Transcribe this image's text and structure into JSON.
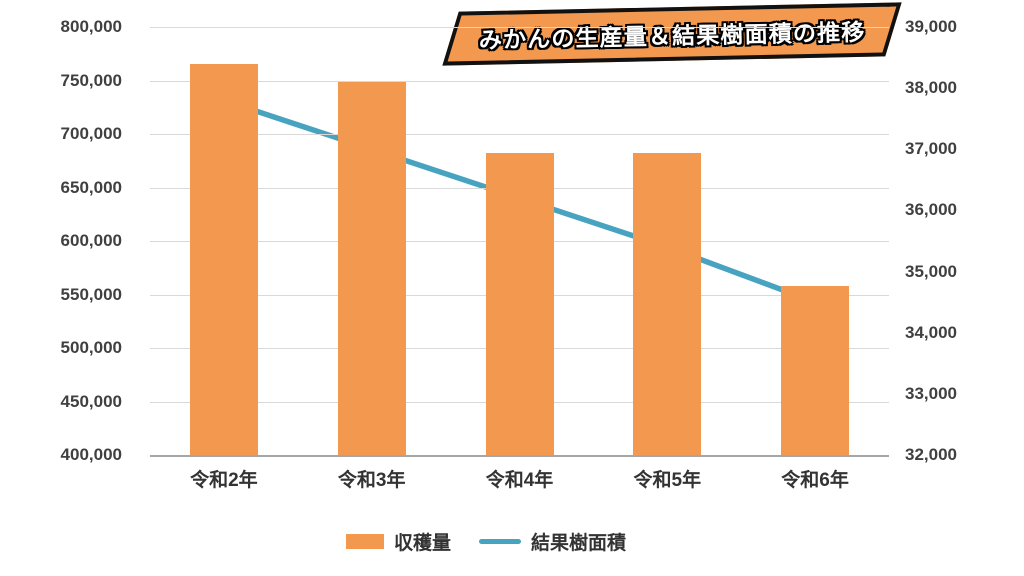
{
  "title": "みかんの生産量＆結果樹面積の推移",
  "colors": {
    "bar": "#F2984F",
    "line": "#47A3BF",
    "banner_bg": "#F2984F",
    "banner_border": "#111111",
    "grid": "#d9d9d9",
    "axis_line": "#a6a6a6",
    "axis_text": "#404040"
  },
  "legend": [
    {
      "label": "収穫量",
      "swatch": "bar"
    },
    {
      "label": "結果樹面積",
      "swatch": "line"
    }
  ],
  "chart_data": {
    "type": "bar+line combo",
    "title": "みかんの生産量＆結果樹面積の推移",
    "categories": [
      "令和2年",
      "令和3年",
      "令和4年",
      "令和5年",
      "令和6年"
    ],
    "series": [
      {
        "name": "収穫量",
        "type": "bar",
        "axis": "left",
        "color": "#F2984F",
        "values": [
          765000,
          749000,
          682000,
          682000,
          558000
        ]
      },
      {
        "name": "結果樹面積",
        "type": "line",
        "axis": "right",
        "color": "#47A3BF",
        "values": [
          37800,
          37000,
          36200,
          35400,
          34500
        ]
      }
    ],
    "left_axis": {
      "min": 400000,
      "max": 800000,
      "step": 50000,
      "tick_labels": [
        "800,000",
        "750,000",
        "700,000",
        "650,000",
        "600,000",
        "550,000",
        "500,000",
        "450,000",
        "400,000"
      ]
    },
    "right_axis": {
      "min": 32000,
      "max": 39000,
      "step": 1000,
      "tick_labels": [
        "39,000",
        "38,000",
        "37,000",
        "36,000",
        "35,000",
        "34,000",
        "33,000",
        "32,000"
      ]
    },
    "grid": true,
    "legend_position": "bottom"
  }
}
